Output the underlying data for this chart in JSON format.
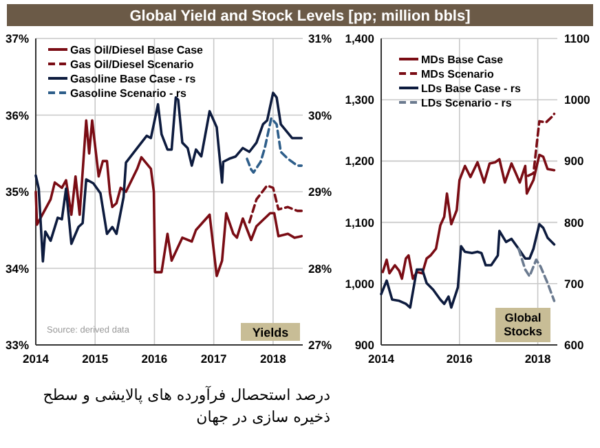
{
  "chart_data": [
    {
      "type": "line",
      "title": "Global Yield and Stock Levels [pp; million bbls]",
      "xlim": [
        2014,
        2018.5
      ],
      "xticks": [
        2014,
        2015,
        2016,
        2017,
        2018
      ],
      "ylim": [
        33,
        37
      ],
      "yticks": [
        {
          "value": 33,
          "label": "33%"
        },
        {
          "value": 34,
          "label": "34%"
        },
        {
          "value": 35,
          "label": "35%"
        },
        {
          "value": 36,
          "label": "36%"
        },
        {
          "value": 37,
          "label": "37%"
        }
      ],
      "y2lim": [
        27,
        31
      ],
      "y2ticks": [
        {
          "value": 27,
          "label": "27%"
        },
        {
          "value": 28,
          "label": "28%"
        },
        {
          "value": 29,
          "label": "29%"
        },
        {
          "value": 30,
          "label": "30%"
        },
        {
          "value": 31,
          "label": "31%"
        }
      ],
      "grid": true,
      "legend": "top left",
      "series": [
        {
          "name": "Gas Oil/Diesel Base Case",
          "color": "#7a0c14",
          "line_style": "solid",
          "x": [
            2014.0,
            2014.02,
            2014.25,
            2014.32,
            2014.44,
            2014.51,
            2014.6,
            2014.67,
            2014.74,
            2014.85,
            2014.9,
            2014.95,
            2015.06,
            2015.13,
            2015.2,
            2015.25,
            2015.29,
            2015.36,
            2015.43,
            2015.52,
            2015.71,
            2015.78,
            2015.94,
            2015.99,
            2016.01,
            2016.12,
            2016.22,
            2016.29,
            2016.47,
            2016.63,
            2016.7,
            2016.93,
            2017.05,
            2017.14,
            2017.21,
            2017.33,
            2017.39,
            2017.49,
            2017.63,
            2017.72,
            2017.95,
            2018.02,
            2018.09,
            2018.25,
            2018.36,
            2018.48
          ],
          "values": [
            35.0,
            34.57,
            34.9,
            35.12,
            35.05,
            35.15,
            34.7,
            35.2,
            34.7,
            35.93,
            35.5,
            35.93,
            35.2,
            35.4,
            35.4,
            34.98,
            34.8,
            34.85,
            35.05,
            35.0,
            35.3,
            35.45,
            35.3,
            35.0,
            33.95,
            33.95,
            34.45,
            34.1,
            34.4,
            34.35,
            34.5,
            34.7,
            33.9,
            34.1,
            34.72,
            34.45,
            34.4,
            34.65,
            34.37,
            34.55,
            34.72,
            34.72,
            34.42,
            34.45,
            34.4,
            34.42
          ]
        },
        {
          "name": "Gas Oil/Diesel Scenario",
          "color": "#7a0c14",
          "line_style": "dashed",
          "x": [
            2017.6,
            2017.72,
            2017.9,
            2018.0,
            2018.09,
            2018.25,
            2018.41,
            2018.48
          ],
          "values": [
            34.6,
            34.9,
            35.08,
            35.05,
            34.77,
            34.8,
            34.75,
            34.75
          ]
        },
        {
          "name": "Gasoline Base Case - rs",
          "color": "#0d1b3e",
          "line_style": "solid",
          "axis": "y2",
          "x": [
            2014.0,
            2014.05,
            2014.12,
            2014.16,
            2014.25,
            2014.37,
            2014.44,
            2014.51,
            2014.6,
            2014.72,
            2014.79,
            2014.85,
            2014.97,
            2015.09,
            2015.2,
            2015.29,
            2015.36,
            2015.48,
            2015.52,
            2015.71,
            2015.87,
            2015.94,
            2016.06,
            2016.12,
            2016.22,
            2016.29,
            2016.36,
            2016.4,
            2016.47,
            2016.56,
            2016.63,
            2016.7,
            2016.79,
            2016.93,
            2017.05,
            2017.14,
            2017.16,
            2017.26,
            2017.37,
            2017.49,
            2017.6,
            2017.72,
            2017.83,
            2017.9,
            2018.0,
            2018.06,
            2018.13,
            2018.32,
            2018.48
          ],
          "values": [
            29.21,
            29.04,
            28.09,
            28.48,
            28.36,
            28.66,
            28.64,
            29.04,
            28.32,
            28.54,
            28.59,
            29.16,
            29.11,
            28.98,
            28.45,
            28.54,
            28.45,
            28.93,
            29.38,
            29.57,
            29.73,
            29.7,
            30.14,
            29.75,
            29.55,
            29.55,
            30.23,
            30.2,
            29.64,
            29.57,
            29.34,
            29.55,
            29.46,
            30.05,
            29.84,
            29.12,
            29.39,
            29.43,
            29.46,
            29.57,
            29.52,
            29.64,
            29.88,
            29.93,
            30.29,
            30.23,
            29.88,
            29.7,
            29.7
          ]
        },
        {
          "name": "Gasoline Scenario - rs",
          "color": "#2e5e8a",
          "line_style": "dashed",
          "axis": "y2",
          "x": [
            2017.56,
            2017.63,
            2017.67,
            2017.79,
            2017.86,
            2017.97,
            2018.06,
            2018.13,
            2018.25,
            2018.41,
            2018.48
          ],
          "values": [
            29.43,
            29.29,
            29.25,
            29.39,
            29.57,
            29.96,
            29.88,
            29.52,
            29.43,
            29.34,
            29.34
          ]
        }
      ],
      "annotations": [
        "Source: derived data",
        "Yields",
        "درصد استحصال فرآورده های پالایشی و سطح ذخیره سازی در جهان"
      ]
    },
    {
      "type": "line",
      "xlim": [
        2014,
        2018.5
      ],
      "xticks": [
        2014,
        2016,
        2018
      ],
      "ylim": [
        900,
        1400
      ],
      "yticks": [
        900,
        {
          "value": 1000,
          "label": "1,000"
        },
        {
          "value": 1100,
          "label": "1,100"
        },
        {
          "value": 1200,
          "label": "1,200"
        },
        {
          "value": 1300,
          "label": "1,300"
        },
        {
          "value": 1400,
          "label": "1,400"
        }
      ],
      "y2lim": [
        600,
        1100
      ],
      "y2ticks": [
        600,
        700,
        800,
        900,
        1000,
        1100
      ],
      "grid": true,
      "legend": "top left",
      "series": [
        {
          "name": "MDs Base Case",
          "color": "#7a0c14",
          "line_style": "solid",
          "x": [
            2014.04,
            2014.14,
            2014.21,
            2014.35,
            2014.46,
            2014.53,
            2014.63,
            2014.7,
            2014.81,
            2014.91,
            2015.05,
            2015.16,
            2015.26,
            2015.4,
            2015.51,
            2015.61,
            2015.68,
            2015.79,
            2015.93,
            2016.0,
            2016.14,
            2016.28,
            2016.46,
            2016.63,
            2016.77,
            2016.91,
            2017.02,
            2017.16,
            2017.33,
            2017.44,
            2017.54,
            2017.68,
            2017.72,
            2017.89,
            2018.04,
            2018.14,
            2018.25,
            2018.42
          ],
          "values": [
            1019,
            1039,
            1017,
            1030,
            1021,
            1008,
            1041,
            1046,
            1008,
            1019,
            1017,
            1041,
            1046,
            1057,
            1095,
            1109,
            1147,
            1097,
            1120,
            1169,
            1192,
            1174,
            1198,
            1165,
            1196,
            1198,
            1203,
            1165,
            1196,
            1180,
            1165,
            1192,
            1147,
            1169,
            1210,
            1207,
            1187,
            1185
          ]
        },
        {
          "name": "MDs Scenario",
          "color": "#7a0c14",
          "line_style": "dashed",
          "x": [
            2017.75,
            2017.89,
            2018.04,
            2018.21,
            2018.39,
            2018.42
          ],
          "values": [
            1176,
            1180,
            1265,
            1263,
            1274,
            1277
          ]
        },
        {
          "name": "LDs Base Case - rs",
          "color": "#0d1b3e",
          "line_style": "solid",
          "axis": "y2",
          "x": [
            2014.0,
            2014.14,
            2014.28,
            2014.46,
            2014.63,
            2014.74,
            2014.91,
            2015.05,
            2015.16,
            2015.33,
            2015.51,
            2015.61,
            2015.72,
            2015.79,
            2015.96,
            2016.04,
            2016.14,
            2016.32,
            2016.46,
            2016.56,
            2016.67,
            2016.81,
            2016.98,
            2017.02,
            2017.19,
            2017.33,
            2017.51,
            2017.68,
            2017.79,
            2017.89,
            2018.04,
            2018.14,
            2018.25,
            2018.42
          ],
          "values": [
            683,
            705,
            674,
            672,
            667,
            661,
            723,
            723,
            701,
            690,
            674,
            667,
            679,
            661,
            694,
            761,
            752,
            750,
            752,
            750,
            730,
            730,
            746,
            786,
            768,
            773,
            757,
            741,
            741,
            757,
            797,
            791,
            775,
            764
          ]
        },
        {
          "name": "LDs Scenario - rs",
          "color": "#6b7a8f",
          "line_style": "dashed",
          "axis": "y2",
          "x": [
            2017.51,
            2017.68,
            2017.79,
            2017.96,
            2018.07,
            2018.25,
            2018.42
          ],
          "values": [
            757,
            723,
            712,
            739,
            728,
            701,
            672
          ]
        }
      ],
      "annotations": [
        "Global Stocks"
      ]
    }
  ]
}
